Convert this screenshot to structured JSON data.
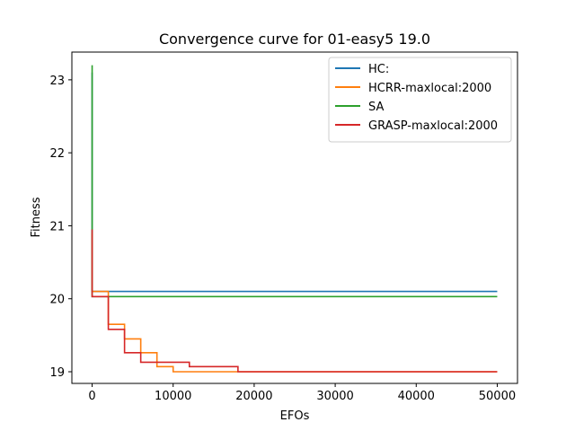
{
  "chart_data": {
    "type": "line",
    "title": "Convergence curve for 01-easy5 19.0",
    "xlabel": "EFOs",
    "ylabel": "Fitness",
    "xlim": [
      -2500,
      52500
    ],
    "ylim": [
      18.84,
      23.38
    ],
    "xticks": [
      0,
      10000,
      20000,
      30000,
      40000,
      50000
    ],
    "yticks": [
      19,
      20,
      21,
      22,
      23
    ],
    "grid": false,
    "legend_position": "upper right",
    "series": [
      {
        "name": "HC:",
        "color": "#1f77b4",
        "step": true,
        "points": [
          [
            0,
            23.1
          ],
          [
            0,
            20.1
          ],
          [
            50000,
            20.1
          ]
        ]
      },
      {
        "name": "HCRR-maxlocal:2000",
        "color": "#ff7f0e",
        "step": true,
        "points": [
          [
            0,
            20.9
          ],
          [
            0,
            20.1
          ],
          [
            2000,
            20.1
          ],
          [
            2000,
            19.65
          ],
          [
            4000,
            19.65
          ],
          [
            4000,
            19.45
          ],
          [
            6000,
            19.45
          ],
          [
            6000,
            19.26
          ],
          [
            8000,
            19.26
          ],
          [
            8000,
            19.07
          ],
          [
            10000,
            19.07
          ],
          [
            10000,
            19.0
          ],
          [
            50000,
            19.0
          ]
        ]
      },
      {
        "name": "SA",
        "color": "#2ca02c",
        "step": true,
        "points": [
          [
            0,
            23.2
          ],
          [
            0,
            20.03
          ],
          [
            50000,
            20.03
          ]
        ]
      },
      {
        "name": "GRASP-maxlocal:2000",
        "color": "#d62728",
        "step": true,
        "points": [
          [
            0,
            20.95
          ],
          [
            0,
            20.03
          ],
          [
            2000,
            20.03
          ],
          [
            2000,
            19.58
          ],
          [
            4000,
            19.58
          ],
          [
            4000,
            19.26
          ],
          [
            6000,
            19.26
          ],
          [
            6000,
            19.13
          ],
          [
            12000,
            19.13
          ],
          [
            12000,
            19.07
          ],
          [
            18000,
            19.07
          ],
          [
            18000,
            19.0
          ],
          [
            50000,
            19.0
          ]
        ]
      }
    ]
  }
}
